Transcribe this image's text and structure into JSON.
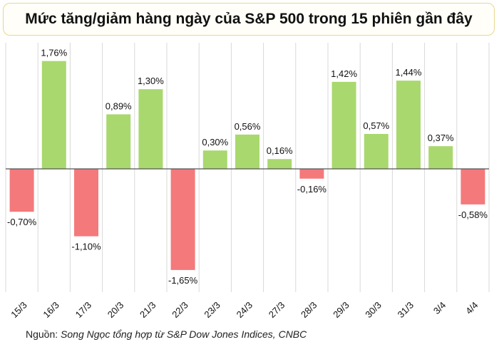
{
  "title": "Mức tăng/giảm hàng ngày của S&P 500 trong 15 phiên gần đây",
  "source": {
    "label": "Nguồn:",
    "value": "Song Ngọc tổng hợp từ S&P Dow Jones Indices, CNBC"
  },
  "colors": {
    "positive": "#a9d86e",
    "negative": "#f4797b",
    "grid": "#d9d9d9",
    "axis": "#555555"
  },
  "chart_data": {
    "type": "bar",
    "categories": [
      "15/3",
      "16/3",
      "17/3",
      "20/3",
      "21/3",
      "22/3",
      "23/3",
      "24/3",
      "27/3",
      "28/3",
      "29/3",
      "30/3",
      "31/3",
      "3/4",
      "4/4"
    ],
    "values": [
      -0.7,
      1.76,
      -1.1,
      0.89,
      1.3,
      -1.65,
      0.3,
      0.56,
      0.16,
      -0.16,
      1.42,
      0.57,
      1.44,
      0.37,
      -0.58
    ],
    "data_labels": [
      "-0,70%",
      "1,76%",
      "-1,10%",
      "0,89%",
      "1,30%",
      "-1,65%",
      "0,30%",
      "0,56%",
      "0,16%",
      "-0,16%",
      "1,42%",
      "0,57%",
      "1,44%",
      "0,37%",
      "-0,58%"
    ],
    "ylim": [
      -2.0,
      2.0
    ],
    "grid": "vertical",
    "legend": "none"
  }
}
